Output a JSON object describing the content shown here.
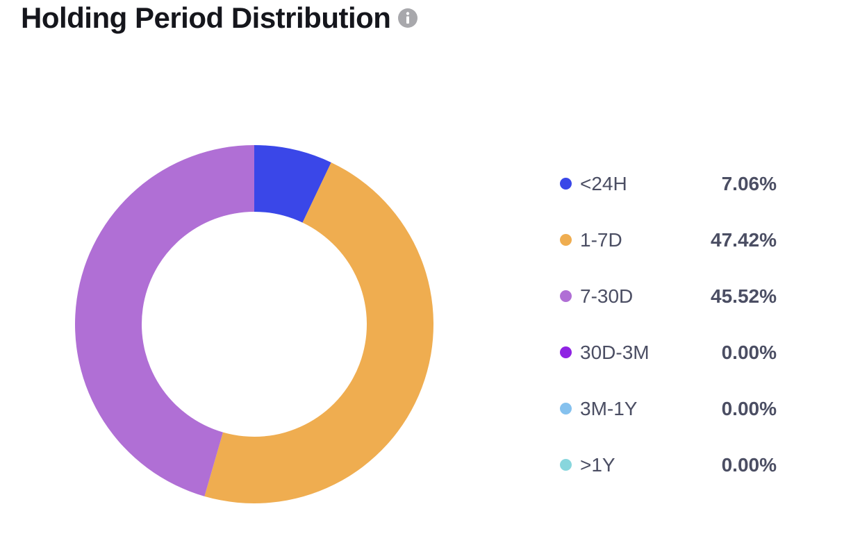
{
  "header": {
    "title": "Holding Period Distribution",
    "info_icon": "info-icon"
  },
  "chart_data": {
    "type": "pie",
    "style": "donut",
    "title": "Holding Period Distribution",
    "categories": [
      "<24H",
      "1-7D",
      "7-30D",
      "30D-3M",
      "3M-1Y",
      ">1Y"
    ],
    "values": [
      7.06,
      47.42,
      45.52,
      0.0,
      0.0,
      0.0
    ],
    "value_labels": [
      "7.06%",
      "47.42%",
      "45.52%",
      "0.00%",
      "0.00%",
      "0.00%"
    ],
    "colors": [
      "#3a47e8",
      "#efad50",
      "#b06fd5",
      "#8f23e3",
      "#85c1ee",
      "#88d6dd"
    ],
    "legend_position": "right"
  }
}
